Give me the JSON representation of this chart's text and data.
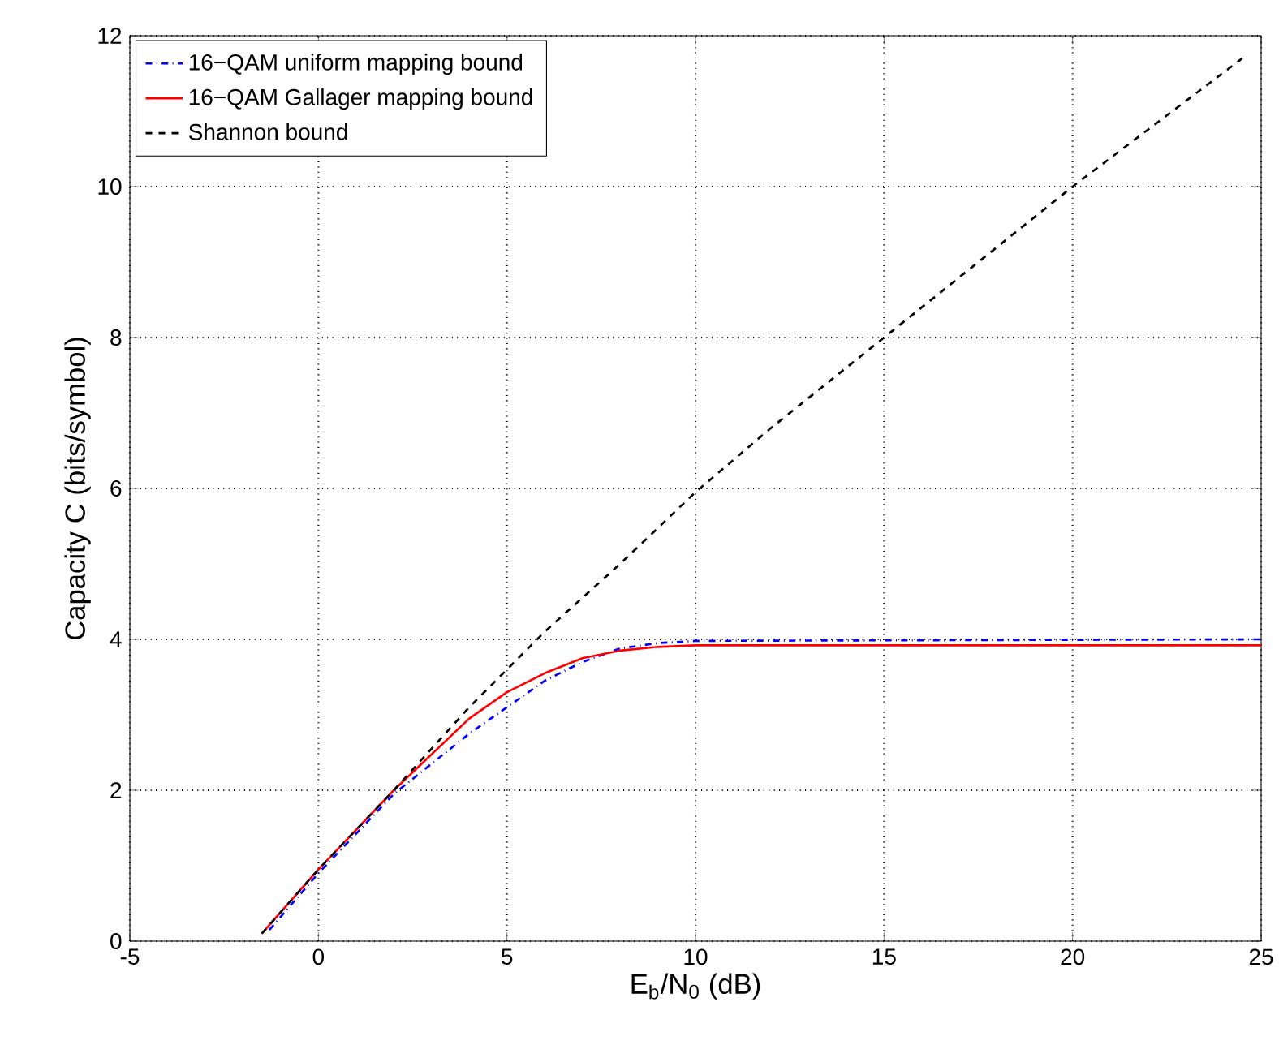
{
  "chart_data": {
    "type": "line",
    "xlabel": "E$_{b}$/N$_{0}$ (dB)",
    "ylabel": "Capacity C (bits/symbol)",
    "xlim": [
      -5,
      25
    ],
    "ylim": [
      0,
      12
    ],
    "xticks": [
      -5,
      0,
      5,
      10,
      15,
      20,
      25
    ],
    "yticks": [
      0,
      2,
      4,
      6,
      8,
      10,
      12
    ],
    "grid": true,
    "legend": "top left",
    "marker": "none",
    "series": [
      {
        "name": "16−QAM uniform mapping  bound",
        "color": "#0000ff",
        "line_style": "dashdot",
        "x": [
          -1.3,
          0,
          2,
          3,
          4,
          5,
          6,
          7,
          8,
          9,
          10,
          25
        ],
        "values": [
          0.15,
          0.9,
          1.95,
          2.35,
          2.75,
          3.1,
          3.45,
          3.7,
          3.88,
          3.95,
          3.98,
          4.0
        ]
      },
      {
        "name": "16−QAM  Gallager mapping bound",
        "color": "#ff0000",
        "line_style": "solid",
        "x": [
          -1.5,
          0,
          2,
          4,
          5,
          6,
          7,
          8,
          9,
          10,
          25
        ],
        "values": [
          0.1,
          0.95,
          2.0,
          2.95,
          3.3,
          3.55,
          3.75,
          3.85,
          3.9,
          3.92,
          3.92
        ]
      },
      {
        "name": "Shannon bound",
        "color": "#000000",
        "line_style": "dashed",
        "x": [
          -1.5,
          0,
          2,
          4,
          5,
          6,
          8,
          10,
          12,
          15,
          20,
          24.5
        ],
        "values": [
          0.1,
          0.95,
          2.0,
          3.1,
          3.6,
          4.1,
          5.0,
          5.95,
          6.8,
          8.0,
          10.0,
          11.7
        ]
      }
    ]
  }
}
